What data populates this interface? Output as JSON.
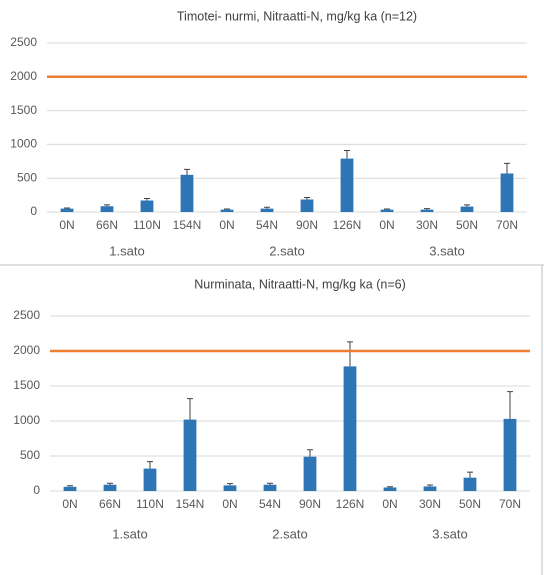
{
  "chart_data": [
    {
      "type": "bar",
      "title": "Timotei- nurmi, Nitraatti-N, mg/kg ka (n=12)",
      "categories": [
        "0N",
        "66N",
        "110N",
        "154N",
        "0N",
        "54N",
        "90N",
        "126N",
        "0N",
        "30N",
        "50N",
        "70N"
      ],
      "group_labels": [
        "1.sato",
        "2.sato",
        "3.sato"
      ],
      "values": [
        50,
        85,
        170,
        550,
        35,
        50,
        185,
        790,
        35,
        35,
        80,
        570
      ],
      "errors": [
        10,
        20,
        30,
        80,
        10,
        20,
        30,
        120,
        10,
        15,
        25,
        150
      ],
      "color": "#2e75b6",
      "reference_line": {
        "value": 2000,
        "color": "#ed7d31"
      },
      "ylim": [
        0,
        2500
      ],
      "yticks": [
        0,
        500,
        1000,
        1500,
        2000,
        2500
      ],
      "grid": true
    },
    {
      "type": "bar",
      "title": "Nurminata, Nitraatti-N, mg/kg ka (n=6)",
      "categories": [
        "0N",
        "66N",
        "110N",
        "154N",
        "0N",
        "54N",
        "90N",
        "126N",
        "0N",
        "30N",
        "50N",
        "70N"
      ],
      "group_labels": [
        "1.sato",
        "2.sato",
        "3.sato"
      ],
      "values": [
        60,
        90,
        320,
        1020,
        80,
        90,
        490,
        1780,
        50,
        65,
        190,
        1030
      ],
      "errors": [
        15,
        20,
        100,
        300,
        25,
        20,
        100,
        350,
        10,
        20,
        80,
        390
      ],
      "color": "#2e75b6",
      "reference_line": {
        "value": 2000,
        "color": "#ed7d31"
      },
      "ylim": [
        0,
        2500
      ],
      "yticks": [
        0,
        500,
        1000,
        1500,
        2000,
        2500
      ],
      "grid": true
    }
  ]
}
